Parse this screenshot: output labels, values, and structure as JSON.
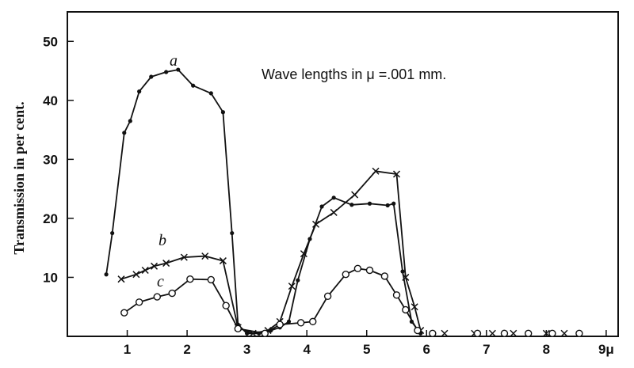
{
  "chart_data": {
    "type": "line",
    "ylabel": "Transmission in per cent.",
    "annotation": "Wave lengths in μ =.001 mm.",
    "x_ticks": [
      "1",
      "2",
      "3",
      "4",
      "5",
      "6",
      "7",
      "8",
      "9μ"
    ],
    "y_ticks": [
      "10",
      "20",
      "30",
      "40",
      "50"
    ],
    "xlim": [
      0,
      9.2
    ],
    "ylim": [
      0,
      55
    ],
    "grid": false,
    "series": [
      {
        "name": "a",
        "marker": "dot",
        "x": [
          0.65,
          0.75,
          0.95,
          1.05,
          1.2,
          1.4,
          1.65,
          1.85,
          2.1,
          2.4,
          2.6,
          2.75,
          2.85,
          3.0,
          3.2,
          3.4,
          3.55,
          3.7,
          3.85,
          4.05,
          4.25,
          4.45,
          4.75,
          5.05,
          5.35,
          5.45,
          5.6,
          5.75,
          5.9
        ],
        "y": [
          10.5,
          17.5,
          34.5,
          36.5,
          41.5,
          44,
          44.8,
          45.2,
          42.5,
          41.2,
          38,
          17.5,
          2,
          0.5,
          0.5,
          1,
          1.5,
          2.5,
          9.5,
          16.5,
          22,
          23.5,
          22.3,
          22.5,
          22.2,
          22.5,
          11,
          2.5,
          0.5
        ]
      },
      {
        "name": "b",
        "marker": "cross",
        "x": [
          0.9,
          1.15,
          1.3,
          1.45,
          1.65,
          1.95,
          2.3,
          2.6,
          2.85,
          3.1,
          3.35,
          3.55,
          3.75,
          3.95,
          4.15,
          4.45,
          4.8,
          5.15,
          5.5,
          5.65,
          5.8,
          5.9,
          6.3,
          6.8,
          7.1,
          7.45,
          8.0,
          8.3
        ],
        "y": [
          9.7,
          10.5,
          11.2,
          11.9,
          12.4,
          13.4,
          13.6,
          12.8,
          1.5,
          0.5,
          1,
          2.5,
          8.5,
          14,
          19,
          21,
          24,
          28,
          27.5,
          10,
          5,
          1,
          0.5,
          0.5,
          0.5,
          0.5,
          0.5,
          0.5
        ]
      },
      {
        "name": "c",
        "marker": "circle",
        "x": [
          0.95,
          1.2,
          1.5,
          1.75,
          2.05,
          2.4,
          2.65,
          2.85,
          3.3,
          3.55,
          3.9,
          4.1,
          4.35,
          4.65,
          4.85,
          5.05,
          5.3,
          5.5,
          5.65,
          5.85,
          6.1,
          6.85,
          7.3,
          7.7,
          8.1,
          8.55
        ],
        "y": [
          4,
          5.8,
          6.7,
          7.3,
          9.7,
          9.6,
          5.2,
          1.3,
          0.5,
          2,
          2.3,
          2.5,
          6.8,
          10.5,
          11.5,
          11.2,
          10.2,
          7,
          4.5,
          1,
          0.5,
          0.5,
          0.5,
          0.5,
          0.5,
          0.5
        ]
      }
    ]
  }
}
